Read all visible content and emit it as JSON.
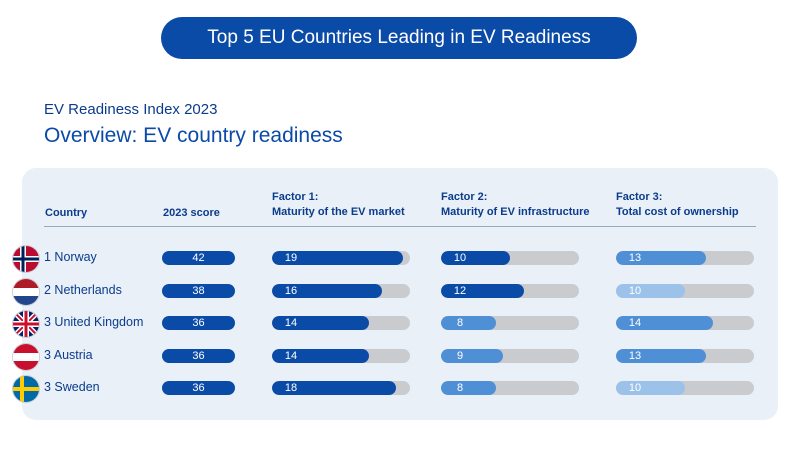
{
  "header": {
    "title": "Top 5 EU Countries Leading in EV Readiness",
    "subtitle": "EV Readiness Index 2023",
    "heading": "Overview: EV country readiness"
  },
  "chart_data": {
    "type": "table",
    "columns": {
      "country": "Country",
      "score": "2023 score",
      "f1_line1": "Factor 1:",
      "f1_line2": "Maturity of the EV market",
      "f2_line1": "Factor 2:",
      "f2_line2": "Maturity of EV infrastructure",
      "f3_line1": "Factor 3:",
      "f3_line2": "Total cost of ownership"
    },
    "factor_max": 20,
    "colors": {
      "strong": "#0b4ba8",
      "medium": "#4f8fd6",
      "light": "#9cc2ea",
      "track": "#c9cbcf",
      "text": "#0b3c8c"
    },
    "rows": [
      {
        "label": "1 Norway",
        "flag": "norway",
        "score": "42",
        "f1": 19,
        "f2": 10,
        "f3": 13,
        "f1_shade": "strong",
        "f2_shade": "strong",
        "f3_shade": "medium"
      },
      {
        "label": "2 Netherlands",
        "flag": "netherlands",
        "score": "38",
        "f1": 16,
        "f2": 12,
        "f3": 10,
        "f1_shade": "strong",
        "f2_shade": "strong",
        "f3_shade": "light"
      },
      {
        "label": "3 United Kingdom",
        "flag": "united-kingdom",
        "score": "36",
        "f1": 14,
        "f2": 8,
        "f3": 14,
        "f1_shade": "strong",
        "f2_shade": "medium",
        "f3_shade": "medium"
      },
      {
        "label": "3 Austria",
        "flag": "austria",
        "score": "36",
        "f1": 14,
        "f2": 9,
        "f3": 13,
        "f1_shade": "strong",
        "f2_shade": "medium",
        "f3_shade": "medium"
      },
      {
        "label": "3 Sweden",
        "flag": "sweden",
        "score": "36",
        "f1": 18,
        "f2": 8,
        "f3": 10,
        "f1_shade": "strong",
        "f2_shade": "medium",
        "f3_shade": "light"
      }
    ]
  }
}
